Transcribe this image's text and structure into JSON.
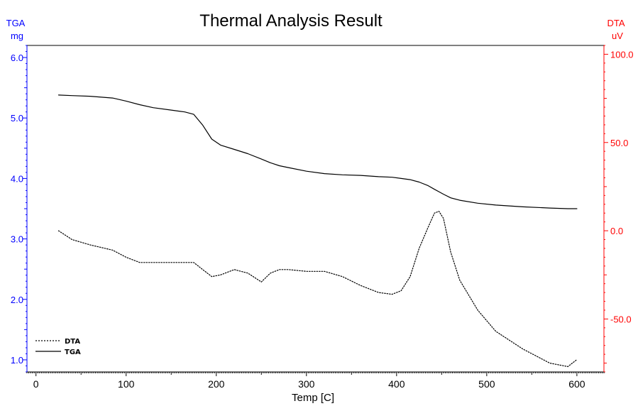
{
  "chart_data": {
    "type": "line",
    "title": "Thermal Analysis Result",
    "xlabel": "Temp  [C]",
    "xlim": [
      -10,
      630
    ],
    "xticks": [
      0,
      100,
      200,
      300,
      400,
      500,
      600
    ],
    "xtick_labels": [
      "0",
      "100",
      "200",
      "300",
      "400",
      "500",
      "600"
    ],
    "y_left": {
      "label_line1": "TGA",
      "label_line2": "mg",
      "color": "#0000ff",
      "ylim": [
        0.8,
        6.2
      ],
      "ticks": [
        1.0,
        2.0,
        3.0,
        4.0,
        5.0,
        6.0
      ],
      "tick_labels": [
        "1.0",
        "2.0",
        "3.0",
        "4.0",
        "5.0",
        "6.0"
      ]
    },
    "y_right": {
      "label_line1": "DTA",
      "label_line2": "uV",
      "color": "#ff0000",
      "ylim": [
        -80,
        105
      ],
      "ticks": [
        -50,
        0,
        50,
        100
      ],
      "tick_labels": [
        "-50.0",
        "0.0",
        "50.0",
        "100.0"
      ]
    },
    "grid": false,
    "legend_position": "bottom-left",
    "series": [
      {
        "name": "DTA",
        "axis": "right",
        "style": "dotted",
        "color": "#000000",
        "x": [
          25,
          40,
          60,
          85,
          100,
          115,
          130,
          150,
          165,
          175,
          185,
          195,
          205,
          220,
          235,
          250,
          260,
          270,
          280,
          300,
          320,
          340,
          360,
          380,
          395,
          405,
          415,
          425,
          435,
          442,
          447,
          452,
          460,
          470,
          490,
          510,
          540,
          570,
          590,
          600
        ],
        "y": [
          0,
          -5,
          -8,
          -11,
          -15,
          -18,
          -18,
          -18,
          -18,
          -18,
          -22,
          -26,
          -25,
          -22,
          -24,
          -29,
          -24,
          -22,
          -22,
          -23,
          -23,
          -26,
          -31,
          -35,
          -36,
          -34,
          -26,
          -10,
          2,
          10,
          11,
          7,
          -12,
          -28,
          -45,
          -57,
          -67,
          -75,
          -77,
          -73
        ]
      },
      {
        "name": "TGA",
        "axis": "left",
        "style": "solid",
        "color": "#000000",
        "x": [
          25,
          40,
          60,
          85,
          100,
          115,
          130,
          150,
          165,
          175,
          185,
          195,
          205,
          220,
          235,
          250,
          260,
          270,
          280,
          300,
          320,
          340,
          360,
          380,
          395,
          405,
          415,
          425,
          435,
          442,
          447,
          452,
          460,
          470,
          490,
          510,
          540,
          570,
          590,
          600
        ],
        "y": [
          5.38,
          5.37,
          5.36,
          5.33,
          5.28,
          5.22,
          5.17,
          5.13,
          5.1,
          5.06,
          4.88,
          4.65,
          4.55,
          4.48,
          4.41,
          4.32,
          4.26,
          4.21,
          4.18,
          4.12,
          4.08,
          4.06,
          4.05,
          4.03,
          4.02,
          4.0,
          3.98,
          3.94,
          3.88,
          3.82,
          3.78,
          3.74,
          3.68,
          3.64,
          3.59,
          3.56,
          3.53,
          3.51,
          3.5,
          3.5
        ]
      }
    ]
  }
}
